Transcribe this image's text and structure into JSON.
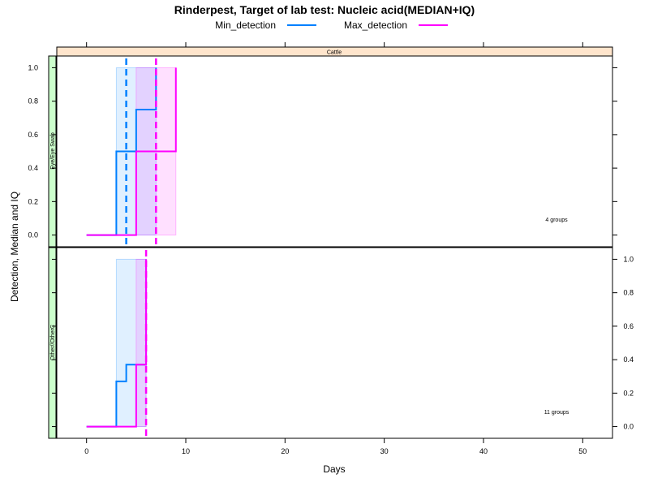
{
  "chart_data": {
    "type": "line",
    "title": "Rinderpest, Target of lab test: Nucleic acid(MEDIAN+IQ)",
    "xlabel": "Days",
    "ylabel": "Detection, Median and IQ",
    "xlim": [
      -3,
      53
    ],
    "ylim": [
      -0.07,
      1.07
    ],
    "x_ticks": [
      0,
      10,
      20,
      30,
      40,
      50
    ],
    "y_ticks": [
      0.0,
      0.2,
      0.4,
      0.6,
      0.8,
      1.0
    ],
    "strip_top": "Cattle",
    "legend": [
      {
        "name": "Min_detection",
        "color": "#0080ff"
      },
      {
        "name": "Max_detection",
        "color": "#ff00ff"
      }
    ],
    "panels": [
      {
        "strip_left": "Eye/Eye Swab",
        "group_label": "4 groups",
        "y_axis_side": "left",
        "series": [
          {
            "name": "Min_detection",
            "color": "#0080ff",
            "type": "step",
            "x": [
              0,
              3,
              5,
              7
            ],
            "y": [
              0,
              0.5,
              0.75,
              1.0
            ],
            "iq_band": {
              "x0": 3,
              "x1": 7,
              "y0": 0,
              "y1": 1.0
            },
            "median_vline": 4
          },
          {
            "name": "Max_detection",
            "color": "#ff00ff",
            "type": "step",
            "x": [
              0,
              5,
              9
            ],
            "y": [
              0,
              0.5,
              1.0
            ],
            "iq_band": {
              "x0": 5,
              "x1": 9,
              "y0": 0,
              "y1": 1.0
            },
            "median_vline": 7
          }
        ]
      },
      {
        "strip_left": "Other//OtherC",
        "group_label": "11 groups",
        "y_axis_side": "right",
        "series": [
          {
            "name": "Min_detection",
            "color": "#0080ff",
            "type": "step",
            "x": [
              0,
              3,
              4,
              5,
              6
            ],
            "y": [
              0,
              0.27,
              0.37,
              0.37,
              1.0
            ],
            "iq_band": {
              "x0": 3,
              "x1": 6,
              "y0": 0,
              "y1": 1.0
            },
            "median_vline": null
          },
          {
            "name": "Max_detection",
            "color": "#ff00ff",
            "type": "step",
            "x": [
              0,
              5,
              6
            ],
            "y": [
              0,
              0.37,
              1.0
            ],
            "iq_band": {
              "x0": 5,
              "x1": 6,
              "y0": 0,
              "y1": 1.0
            },
            "median_vline": 6
          }
        ]
      }
    ]
  }
}
